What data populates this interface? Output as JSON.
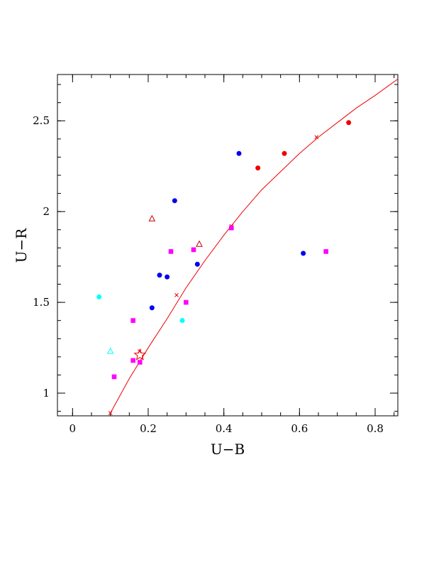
{
  "chart_data": {
    "type": "scatter",
    "title": "",
    "xlabel": "U−B",
    "ylabel": "U−R",
    "xlim": [
      -0.04,
      0.86
    ],
    "ylim": [
      0.875,
      2.755
    ],
    "x_ticks": [
      {
        "value": 0,
        "label": "0"
      },
      {
        "value": 0.2,
        "label": "0.2"
      },
      {
        "value": 0.4,
        "label": "0.4"
      },
      {
        "value": 0.6,
        "label": "0.6"
      },
      {
        "value": 0.8,
        "label": "0.8"
      }
    ],
    "y_ticks": [
      {
        "value": 1,
        "label": "1"
      },
      {
        "value": 1.5,
        "label": "1.5"
      },
      {
        "value": 2,
        "label": "2"
      },
      {
        "value": 2.5,
        "label": "2.5"
      }
    ],
    "x_minor_step": 0.05,
    "y_minor_step": 0.1,
    "grid": false,
    "series": [
      {
        "color": "#0000ee",
        "marker": "circle",
        "points": [
          [
            0.21,
            1.47
          ],
          [
            0.23,
            1.65
          ],
          [
            0.25,
            1.64
          ],
          [
            0.27,
            2.06
          ],
          [
            0.33,
            1.71
          ],
          [
            0.44,
            2.32
          ],
          [
            0.61,
            1.77
          ]
        ]
      },
      {
        "color": "#ee0000",
        "marker": "circle",
        "points": [
          [
            0.49,
            2.24
          ],
          [
            0.56,
            2.32
          ],
          [
            0.73,
            2.49
          ]
        ]
      },
      {
        "color": "#ff00ff",
        "marker": "square",
        "points": [
          [
            0.11,
            1.09
          ],
          [
            0.16,
            1.4
          ],
          [
            0.16,
            1.18
          ],
          [
            0.178,
            1.17
          ],
          [
            0.26,
            1.78
          ],
          [
            0.3,
            1.5
          ],
          [
            0.32,
            1.79
          ],
          [
            0.42,
            1.91
          ],
          [
            0.67,
            1.78
          ]
        ]
      },
      {
        "color": "#00ffff",
        "marker": "circle",
        "points": [
          [
            0.07,
            1.53
          ],
          [
            0.29,
            1.4
          ]
        ]
      },
      {
        "color": "#00ffff",
        "marker": "open-triangle",
        "points": [
          [
            0.1,
            1.23
          ]
        ]
      },
      {
        "color": "#cc0000",
        "marker": "open-triangle",
        "points": [
          [
            0.21,
            1.96
          ],
          [
            0.335,
            1.82
          ]
        ]
      },
      {
        "color": "#ee0000",
        "marker": "star",
        "points": [
          [
            0.178,
            1.21
          ]
        ]
      }
    ],
    "curve": {
      "color": "#ee0000",
      "points": [
        [
          0.1,
          0.89
        ],
        [
          0.15,
          1.08
        ],
        [
          0.2,
          1.25
        ],
        [
          0.25,
          1.41
        ],
        [
          0.3,
          1.58
        ],
        [
          0.35,
          1.73
        ],
        [
          0.4,
          1.87
        ],
        [
          0.45,
          2.0
        ],
        [
          0.5,
          2.12
        ],
        [
          0.55,
          2.22
        ],
        [
          0.6,
          2.32
        ],
        [
          0.65,
          2.41
        ],
        [
          0.7,
          2.49
        ],
        [
          0.75,
          2.57
        ],
        [
          0.8,
          2.64
        ],
        [
          0.84,
          2.7
        ],
        [
          0.86,
          2.73
        ]
      ],
      "cross_markers": [
        [
          0.1,
          0.89
        ],
        [
          0.177,
          1.23
        ],
        [
          0.275,
          1.54
        ],
        [
          0.42,
          1.92
        ],
        [
          0.645,
          2.41
        ]
      ]
    }
  }
}
